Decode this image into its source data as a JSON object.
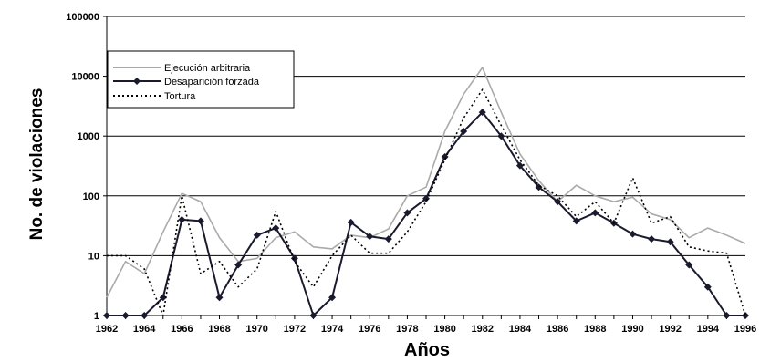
{
  "chart_data": {
    "type": "line",
    "xlabel": "Años",
    "ylabel": "No. de violaciones",
    "yscale": "log",
    "ylim": [
      1,
      100000
    ],
    "xlim": [
      1962,
      1996
    ],
    "y_ticks": [
      "1",
      "10",
      "100",
      "1000",
      "10000",
      "100000"
    ],
    "x_ticks": [
      "1962",
      "1964",
      "1966",
      "1968",
      "1970",
      "1972",
      "1974",
      "1976",
      "1978",
      "1980",
      "1982",
      "1984",
      "1986",
      "1988",
      "1990",
      "1992",
      "1994",
      "1996"
    ],
    "grid": "horizontal",
    "legend_position": "top-left",
    "x": [
      1962,
      1963,
      1964,
      1965,
      1966,
      1967,
      1968,
      1969,
      1970,
      1971,
      1972,
      1973,
      1974,
      1975,
      1976,
      1977,
      1978,
      1979,
      1980,
      1981,
      1982,
      1983,
      1984,
      1985,
      1986,
      1987,
      1988,
      1989,
      1990,
      1991,
      1992,
      1993,
      1994,
      1995,
      1996
    ],
    "series": [
      {
        "name": "Ejecución arbitraria",
        "color": "#aaaaaa",
        "style": "solid",
        "values": [
          2,
          8,
          5,
          25,
          110,
          80,
          20,
          8,
          9,
          20,
          25,
          14,
          13,
          22,
          20,
          28,
          100,
          140,
          1200,
          5000,
          14000,
          2500,
          500,
          180,
          80,
          150,
          100,
          80,
          95,
          50,
          40,
          20,
          29,
          22,
          16
        ]
      },
      {
        "name": "Desaparición forzada",
        "color": "#1a1a2e",
        "style": "solid-diamond",
        "values": [
          1,
          1,
          1,
          2,
          40,
          38,
          2,
          7,
          22,
          29,
          9,
          1,
          2,
          36,
          21,
          19,
          52,
          90,
          450,
          1200,
          2500,
          1000,
          320,
          140,
          80,
          38,
          52,
          35,
          23,
          19,
          17,
          7,
          3,
          1,
          1
        ]
      },
      {
        "name": "Tortura",
        "color": "#000000",
        "style": "dotted",
        "values": [
          10,
          10,
          6,
          1,
          100,
          5,
          8,
          3,
          6,
          55,
          8,
          3,
          10,
          22,
          11,
          11,
          25,
          80,
          400,
          2000,
          6000,
          1500,
          400,
          150,
          100,
          45,
          80,
          35,
          200,
          35,
          45,
          14,
          12,
          11,
          1
        ]
      }
    ]
  }
}
